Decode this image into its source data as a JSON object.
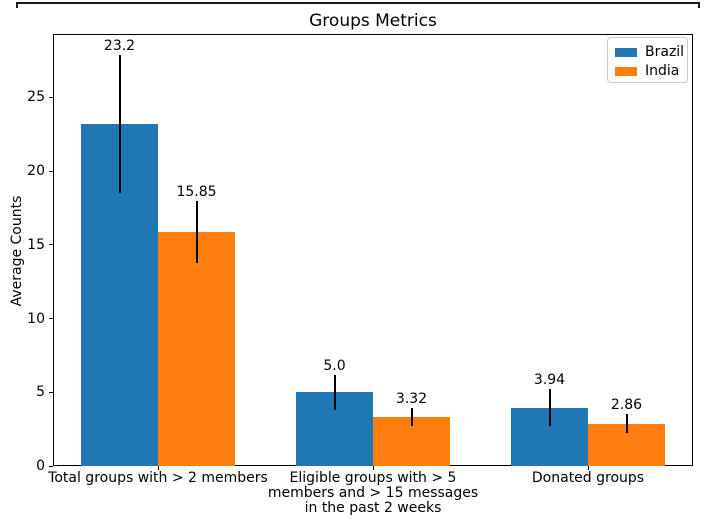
{
  "chart_data": {
    "type": "bar",
    "title": "Groups Metrics",
    "ylabel": "Average Counts",
    "xlabel": "",
    "categories": [
      "Total groups with > 2 members",
      "Eligible groups with > 5\nmembers and > 15 messages\nin the past 2 weeks",
      "Donated groups"
    ],
    "series": [
      {
        "name": "Brazil",
        "color": "#1f77b4",
        "values": [
          23.2,
          5.0,
          3.94
        ],
        "value_labels": [
          "23.2",
          "5.0",
          "3.94"
        ],
        "errors": [
          4.7,
          1.2,
          1.25
        ]
      },
      {
        "name": "India",
        "color": "#ff7f0e",
        "values": [
          15.85,
          3.32,
          2.86
        ],
        "value_labels": [
          "15.85",
          "3.32",
          "2.86"
        ],
        "errors": [
          2.1,
          0.6,
          0.65
        ]
      }
    ],
    "yticks": [
      0,
      5,
      10,
      15,
      20,
      25
    ],
    "ylim": [
      0,
      29.3
    ],
    "grid": false,
    "error_bars": true,
    "legend": {
      "position": "upper right",
      "entries": [
        "Brazil",
        "India"
      ]
    }
  }
}
